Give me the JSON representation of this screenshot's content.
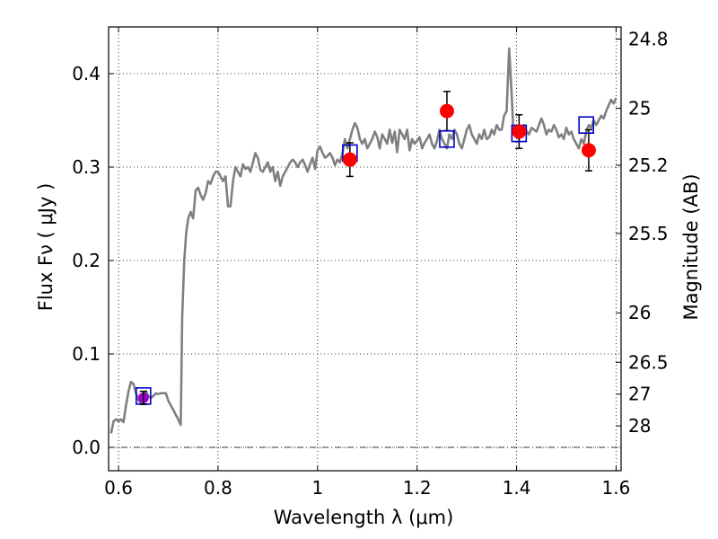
{
  "chart_data": {
    "type": "line",
    "title": "",
    "xlabel": "Wavelength  λ (μm)",
    "ylabel": "Flux  Fν  ( μJy )",
    "y2label": "Magnitude (AB)",
    "xlim": [
      0.58,
      1.61
    ],
    "ylim": [
      -0.025,
      0.45
    ],
    "grid": true,
    "x_ticks": [
      0.6,
      0.8,
      1.0,
      1.2,
      1.4,
      1.6
    ],
    "x_tick_labels": [
      "0.6",
      "0.8",
      "1",
      "1.2",
      "1.4",
      "1.6"
    ],
    "y_ticks": [
      0.0,
      0.1,
      0.2,
      0.3,
      0.4
    ],
    "y_tick_labels": [
      "0.0",
      "0.1",
      "0.2",
      "0.3",
      "0.4"
    ],
    "y2_ticks": [
      {
        "label": "24.8",
        "flux": 0.437
      },
      {
        "label": "25",
        "flux": 0.363
      },
      {
        "label": "25.2",
        "flux": 0.302
      },
      {
        "label": "25.5",
        "flux": 0.229
      },
      {
        "label": "26",
        "flux": 0.144
      },
      {
        "label": "26.5",
        "flux": 0.091
      },
      {
        "label": "27",
        "flux": 0.057
      },
      {
        "label": "28",
        "flux": 0.023
      }
    ],
    "zero_line": 0.0,
    "colors": {
      "spectrum": "#808080",
      "observed": "#ff0000",
      "model": "#0000cc",
      "uv_point": "#9900cc"
    },
    "series": [
      {
        "kind": "spectrum",
        "x": [
          0.585,
          0.59,
          0.595,
          0.6,
          0.605,
          0.61,
          0.615,
          0.62,
          0.625,
          0.63,
          0.635,
          0.64,
          0.645,
          0.65,
          0.655,
          0.66,
          0.665,
          0.67,
          0.675,
          0.68,
          0.685,
          0.69,
          0.695,
          0.7,
          0.705,
          0.71,
          0.715,
          0.72,
          0.725,
          0.728,
          0.732,
          0.736,
          0.74,
          0.745,
          0.75,
          0.755,
          0.76,
          0.765,
          0.77,
          0.775,
          0.78,
          0.785,
          0.79,
          0.795,
          0.8,
          0.805,
          0.81,
          0.815,
          0.82,
          0.825,
          0.83,
          0.835,
          0.84,
          0.845,
          0.85,
          0.855,
          0.86,
          0.865,
          0.87,
          0.875,
          0.88,
          0.885,
          0.89,
          0.895,
          0.9,
          0.905,
          0.91,
          0.915,
          0.92,
          0.925,
          0.93,
          0.935,
          0.94,
          0.945,
          0.95,
          0.955,
          0.96,
          0.965,
          0.97,
          0.975,
          0.98,
          0.985,
          0.99,
          0.995,
          1.0,
          1.005,
          1.01,
          1.015,
          1.02,
          1.025,
          1.03,
          1.035,
          1.04,
          1.045,
          1.05,
          1.055,
          1.06,
          1.065,
          1.07,
          1.075,
          1.08,
          1.085,
          1.09,
          1.095,
          1.1,
          1.105,
          1.11,
          1.115,
          1.12,
          1.125,
          1.13,
          1.135,
          1.14,
          1.145,
          1.15,
          1.155,
          1.16,
          1.165,
          1.17,
          1.175,
          1.18,
          1.185,
          1.19,
          1.195,
          1.2,
          1.205,
          1.21,
          1.215,
          1.22,
          1.225,
          1.23,
          1.235,
          1.24,
          1.245,
          1.25,
          1.255,
          1.26,
          1.265,
          1.27,
          1.275,
          1.28,
          1.285,
          1.29,
          1.295,
          1.3,
          1.305,
          1.31,
          1.315,
          1.32,
          1.325,
          1.33,
          1.335,
          1.34,
          1.345,
          1.35,
          1.355,
          1.36,
          1.365,
          1.37,
          1.375,
          1.38,
          1.385,
          1.39,
          1.393,
          1.396,
          1.4,
          1.405,
          1.41,
          1.415,
          1.42,
          1.425,
          1.43,
          1.435,
          1.44,
          1.445,
          1.45,
          1.455,
          1.46,
          1.465,
          1.47,
          1.475,
          1.48,
          1.485,
          1.49,
          1.495,
          1.5,
          1.505,
          1.51,
          1.515,
          1.52,
          1.525,
          1.53,
          1.535,
          1.54,
          1.545,
          1.55,
          1.555,
          1.56,
          1.565,
          1.57,
          1.575,
          1.58,
          1.585,
          1.59,
          1.595,
          1.6
        ],
        "y": [
          0.015,
          0.028,
          0.03,
          0.028,
          0.03,
          0.027,
          0.045,
          0.06,
          0.07,
          0.068,
          0.058,
          0.05,
          0.048,
          0.052,
          0.06,
          0.055,
          0.053,
          0.055,
          0.058,
          0.057,
          0.058,
          0.058,
          0.058,
          0.05,
          0.045,
          0.04,
          0.035,
          0.03,
          0.024,
          0.14,
          0.2,
          0.23,
          0.245,
          0.252,
          0.245,
          0.275,
          0.278,
          0.27,
          0.265,
          0.272,
          0.285,
          0.282,
          0.29,
          0.295,
          0.295,
          0.29,
          0.285,
          0.29,
          0.258,
          0.258,
          0.285,
          0.3,
          0.295,
          0.29,
          0.303,
          0.298,
          0.3,
          0.295,
          0.305,
          0.315,
          0.31,
          0.297,
          0.295,
          0.3,
          0.305,
          0.295,
          0.3,
          0.285,
          0.295,
          0.28,
          0.29,
          0.295,
          0.3,
          0.305,
          0.308,
          0.305,
          0.3,
          0.305,
          0.308,
          0.302,
          0.295,
          0.303,
          0.31,
          0.298,
          0.318,
          0.322,
          0.315,
          0.31,
          0.312,
          0.315,
          0.31,
          0.302,
          0.308,
          0.305,
          0.315,
          0.33,
          0.32,
          0.33,
          0.34,
          0.347,
          0.342,
          0.33,
          0.325,
          0.33,
          0.32,
          0.325,
          0.33,
          0.338,
          0.332,
          0.32,
          0.335,
          0.33,
          0.325,
          0.34,
          0.326,
          0.338,
          0.316,
          0.34,
          0.335,
          0.33,
          0.34,
          0.318,
          0.33,
          0.325,
          0.328,
          0.332,
          0.32,
          0.326,
          0.33,
          0.335,
          0.325,
          0.32,
          0.328,
          0.34,
          0.33,
          0.325,
          0.32,
          0.335,
          0.33,
          0.34,
          0.335,
          0.325,
          0.32,
          0.33,
          0.34,
          0.345,
          0.335,
          0.33,
          0.325,
          0.335,
          0.33,
          0.34,
          0.33,
          0.332,
          0.34,
          0.335,
          0.345,
          0.34,
          0.34,
          0.355,
          0.36,
          0.427,
          0.38,
          0.345,
          0.335,
          0.338,
          0.33,
          0.34,
          0.345,
          0.338,
          0.335,
          0.342,
          0.34,
          0.338,
          0.345,
          0.352,
          0.345,
          0.335,
          0.34,
          0.338,
          0.345,
          0.34,
          0.332,
          0.335,
          0.33,
          0.342,
          0.335,
          0.338,
          0.33,
          0.325,
          0.32,
          0.33,
          0.325,
          0.338,
          0.345,
          0.342,
          0.35,
          0.345,
          0.35,
          0.355,
          0.352,
          0.36,
          0.366,
          0.372,
          0.368,
          0.374
        ]
      },
      {
        "kind": "observed",
        "x": [
          1.065,
          1.26,
          1.405,
          1.545
        ],
        "y": [
          0.308,
          0.36,
          0.338,
          0.318
        ],
        "err": [
          0.018,
          0.021,
          0.018,
          0.022
        ]
      },
      {
        "kind": "model",
        "x": [
          0.65,
          1.065,
          1.26,
          1.405,
          1.54
        ],
        "y": [
          0.055,
          0.315,
          0.33,
          0.336,
          0.345
        ]
      },
      {
        "kind": "uv_point",
        "x": [
          0.65
        ],
        "y": [
          0.053
        ],
        "err": [
          0.007
        ]
      }
    ]
  }
}
